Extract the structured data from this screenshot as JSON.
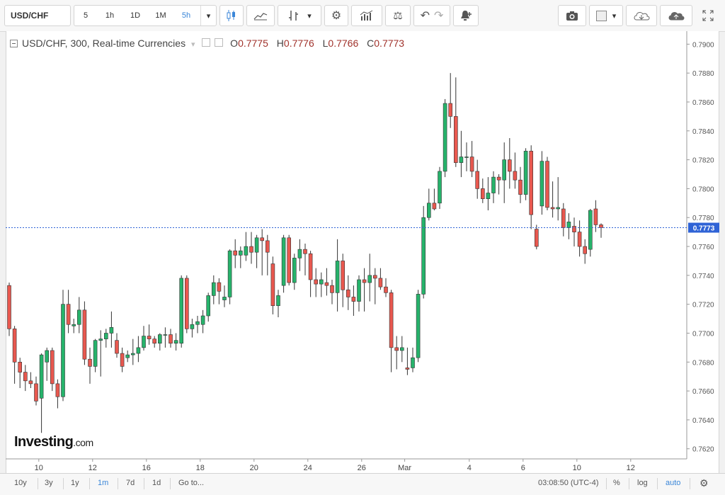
{
  "toolbar": {
    "symbol": "USD/CHF",
    "intervals": [
      "5",
      "1h",
      "1D",
      "1M",
      "5h"
    ],
    "active_interval": "5h"
  },
  "legend": {
    "title": "USD/CHF, 300, Real-time Currencies",
    "o_label": "O",
    "o": "0.7775",
    "h_label": "H",
    "h": "0.7776",
    "l_label": "L",
    "l": "0.7766",
    "c_label": "C",
    "c": "0.7773"
  },
  "logo": {
    "main": "Investing",
    "suffix": ".com"
  },
  "bottom": {
    "ranges": [
      "10y",
      "3y",
      "1y",
      "1m",
      "7d",
      "1d"
    ],
    "active_range": "1m",
    "goto": "Go to...",
    "time": "03:08:50 (UTC-4)",
    "percent": "%",
    "log": "log",
    "auto": "auto"
  },
  "colors": {
    "up": "#26b36b",
    "down": "#e8584f",
    "price_line": "#2f63d6",
    "price_label_bg": "#2f63d6"
  },
  "chart_data": {
    "type": "candlestick",
    "title": "USD/CHF, 300, Real-time Currencies",
    "ylim": [
      0.7613,
      0.7909
    ],
    "y_ticks": [
      "0.7900",
      "0.7880",
      "0.7860",
      "0.7840",
      "0.7820",
      "0.7800",
      "0.7780",
      "0.7760",
      "0.7740",
      "0.7720",
      "0.7700",
      "0.7680",
      "0.7660",
      "0.7640",
      "0.7620"
    ],
    "x_ticks": [
      {
        "label": "10",
        "i": 5.5
      },
      {
        "label": "12",
        "i": 15.5
      },
      {
        "label": "16",
        "i": 25.5
      },
      {
        "label": "18",
        "i": 35.5
      },
      {
        "label": "20",
        "i": 45.5
      },
      {
        "label": "24",
        "i": 55.5
      },
      {
        "label": "26",
        "i": 65.5
      },
      {
        "label": "Mar",
        "i": 73.5
      },
      {
        "label": "4",
        "i": 85.5
      },
      {
        "label": "6",
        "i": 95.5
      },
      {
        "label": "10",
        "i": 105.5
      },
      {
        "label": "12",
        "i": 115.5
      }
    ],
    "last_price": 0.7773,
    "last_price_label": "0.7773",
    "candles": [
      [
        0.7733,
        0.7735,
        0.7698,
        0.7703
      ],
      [
        0.7703,
        0.7705,
        0.7665,
        0.768
      ],
      [
        0.768,
        0.7683,
        0.7662,
        0.7673
      ],
      [
        0.7673,
        0.7678,
        0.766,
        0.7667
      ],
      [
        0.7667,
        0.7673,
        0.7662,
        0.7665
      ],
      [
        0.7665,
        0.767,
        0.765,
        0.7653
      ],
      [
        0.7655,
        0.7686,
        0.7631,
        0.7685
      ],
      [
        0.768,
        0.769,
        0.7667,
        0.7688
      ],
      [
        0.7688,
        0.769,
        0.766,
        0.7665
      ],
      [
        0.7665,
        0.7668,
        0.7648,
        0.7656
      ],
      [
        0.7656,
        0.773,
        0.7653,
        0.772
      ],
      [
        0.772,
        0.773,
        0.77,
        0.7706
      ],
      [
        0.7705,
        0.771,
        0.77,
        0.7706
      ],
      [
        0.7706,
        0.7725,
        0.77,
        0.7716
      ],
      [
        0.7716,
        0.7722,
        0.7678,
        0.7682
      ],
      [
        0.7682,
        0.769,
        0.7665,
        0.7677
      ],
      [
        0.7677,
        0.7696,
        0.7673,
        0.7695
      ],
      [
        0.7695,
        0.7702,
        0.767,
        0.7696
      ],
      [
        0.7696,
        0.7703,
        0.769,
        0.77
      ],
      [
        0.77,
        0.7715,
        0.769,
        0.7704
      ],
      [
        0.7695,
        0.77,
        0.7683,
        0.7686
      ],
      [
        0.7686,
        0.769,
        0.7673,
        0.7677
      ],
      [
        0.7683,
        0.7688,
        0.768,
        0.7685
      ],
      [
        0.7685,
        0.7696,
        0.7678,
        0.7686
      ],
      [
        0.7686,
        0.7698,
        0.768,
        0.769
      ],
      [
        0.769,
        0.7705,
        0.7688,
        0.7698
      ],
      [
        0.7698,
        0.7706,
        0.7692,
        0.7696
      ],
      [
        0.7696,
        0.7698,
        0.769,
        0.7693
      ],
      [
        0.7693,
        0.77,
        0.7688,
        0.7699
      ],
      [
        0.7699,
        0.7704,
        0.769,
        0.7699
      ],
      [
        0.7699,
        0.7703,
        0.769,
        0.7693
      ],
      [
        0.7693,
        0.77,
        0.7688,
        0.7695
      ],
      [
        0.7693,
        0.774,
        0.769,
        0.7738
      ],
      [
        0.7738,
        0.774,
        0.77,
        0.7703
      ],
      [
        0.7703,
        0.771,
        0.7697,
        0.7706
      ],
      [
        0.7706,
        0.7712,
        0.77,
        0.7708
      ],
      [
        0.7706,
        0.7716,
        0.77,
        0.7712
      ],
      [
        0.7712,
        0.7728,
        0.7708,
        0.7726
      ],
      [
        0.7726,
        0.774,
        0.772,
        0.7735
      ],
      [
        0.7735,
        0.7738,
        0.772,
        0.7729
      ],
      [
        0.7723,
        0.7733,
        0.7718,
        0.7725
      ],
      [
        0.7725,
        0.7758,
        0.772,
        0.7757
      ],
      [
        0.7757,
        0.7765,
        0.7745,
        0.7754
      ],
      [
        0.7754,
        0.776,
        0.7745,
        0.7757
      ],
      [
        0.7754,
        0.777,
        0.775,
        0.776
      ],
      [
        0.776,
        0.777,
        0.7748,
        0.7756
      ],
      [
        0.7756,
        0.7768,
        0.7745,
        0.7766
      ],
      [
        0.7766,
        0.7772,
        0.774,
        0.7764
      ],
      [
        0.7764,
        0.7768,
        0.774,
        0.7756
      ],
      [
        0.7748,
        0.7753,
        0.7713,
        0.7719
      ],
      [
        0.7719,
        0.773,
        0.7711,
        0.7726
      ],
      [
        0.7733,
        0.7768,
        0.7728,
        0.7766
      ],
      [
        0.7766,
        0.7768,
        0.7733,
        0.7735
      ],
      [
        0.7735,
        0.7755,
        0.773,
        0.7752
      ],
      [
        0.7752,
        0.7765,
        0.7743,
        0.7758
      ],
      [
        0.7758,
        0.7762,
        0.774,
        0.7755
      ],
      [
        0.7755,
        0.7757,
        0.7725,
        0.7737
      ],
      [
        0.7737,
        0.7745,
        0.7725,
        0.7734
      ],
      [
        0.7734,
        0.7742,
        0.7725,
        0.7737
      ],
      [
        0.7735,
        0.7745,
        0.7726,
        0.7733
      ],
      [
        0.7733,
        0.7737,
        0.772,
        0.7728
      ],
      [
        0.7728,
        0.7765,
        0.7715,
        0.775
      ],
      [
        0.775,
        0.7755,
        0.7718,
        0.773
      ],
      [
        0.773,
        0.774,
        0.7716,
        0.7725
      ],
      [
        0.7725,
        0.7733,
        0.7712,
        0.7722
      ],
      [
        0.7722,
        0.774,
        0.7715,
        0.7737
      ],
      [
        0.7737,
        0.7745,
        0.7715,
        0.7735
      ],
      [
        0.7735,
        0.7755,
        0.7722,
        0.774
      ],
      [
        0.774,
        0.7745,
        0.772,
        0.7738
      ],
      [
        0.7738,
        0.7745,
        0.773,
        0.7732
      ],
      [
        0.7732,
        0.7738,
        0.7725,
        0.7728
      ],
      [
        0.7728,
        0.773,
        0.7673,
        0.769
      ],
      [
        0.769,
        0.7698,
        0.7675,
        0.7688
      ],
      [
        0.7688,
        0.7698,
        0.768,
        0.769
      ],
      [
        0.7676,
        0.769,
        0.7671,
        0.7675
      ],
      [
        0.7676,
        0.769,
        0.7673,
        0.7683
      ],
      [
        0.7683,
        0.773,
        0.768,
        0.7727
      ],
      [
        0.7727,
        0.7788,
        0.7724,
        0.778
      ],
      [
        0.778,
        0.78,
        0.7778,
        0.779
      ],
      [
        0.779,
        0.78,
        0.7785,
        0.7786
      ],
      [
        0.779,
        0.7815,
        0.7786,
        0.7812
      ],
      [
        0.7812,
        0.7862,
        0.7808,
        0.7859
      ],
      [
        0.7859,
        0.788,
        0.7842,
        0.785
      ],
      [
        0.785,
        0.7877,
        0.7815,
        0.7818
      ],
      [
        0.7818,
        0.784,
        0.7808,
        0.7822
      ],
      [
        0.7822,
        0.7832,
        0.7812,
        0.7822
      ],
      [
        0.7822,
        0.7833,
        0.7808,
        0.7812
      ],
      [
        0.7812,
        0.782,
        0.7793,
        0.78
      ],
      [
        0.78,
        0.7807,
        0.779,
        0.7793
      ],
      [
        0.7793,
        0.7808,
        0.7785,
        0.7797
      ],
      [
        0.7797,
        0.7812,
        0.779,
        0.7808
      ],
      [
        0.7808,
        0.781,
        0.7796,
        0.7806
      ],
      [
        0.7806,
        0.7832,
        0.779,
        0.782
      ],
      [
        0.782,
        0.7835,
        0.78,
        0.7812
      ],
      [
        0.7812,
        0.7825,
        0.78,
        0.7806
      ],
      [
        0.7806,
        0.7815,
        0.779,
        0.7796
      ],
      [
        0.7796,
        0.7828,
        0.7792,
        0.7826
      ],
      [
        0.7826,
        0.783,
        0.7772,
        0.7782
      ],
      [
        0.7772,
        0.7775,
        0.7758,
        0.776
      ],
      [
        0.7788,
        0.7826,
        0.7782,
        0.7819
      ],
      [
        0.7819,
        0.7822,
        0.7785,
        0.7787
      ],
      [
        0.7787,
        0.7805,
        0.778,
        0.7786
      ],
      [
        0.7786,
        0.7808,
        0.7778,
        0.7787
      ],
      [
        0.7786,
        0.779,
        0.7767,
        0.7773
      ],
      [
        0.7773,
        0.7783,
        0.7765,
        0.7777
      ],
      [
        0.7774,
        0.778,
        0.776,
        0.777
      ],
      [
        0.777,
        0.7778,
        0.7753,
        0.776
      ],
      [
        0.776,
        0.7765,
        0.7748,
        0.7755
      ],
      [
        0.7758,
        0.7786,
        0.7753,
        0.7785
      ],
      [
        0.7786,
        0.7792,
        0.777,
        0.7775
      ],
      [
        0.7775,
        0.7776,
        0.7766,
        0.7773
      ]
    ]
  }
}
